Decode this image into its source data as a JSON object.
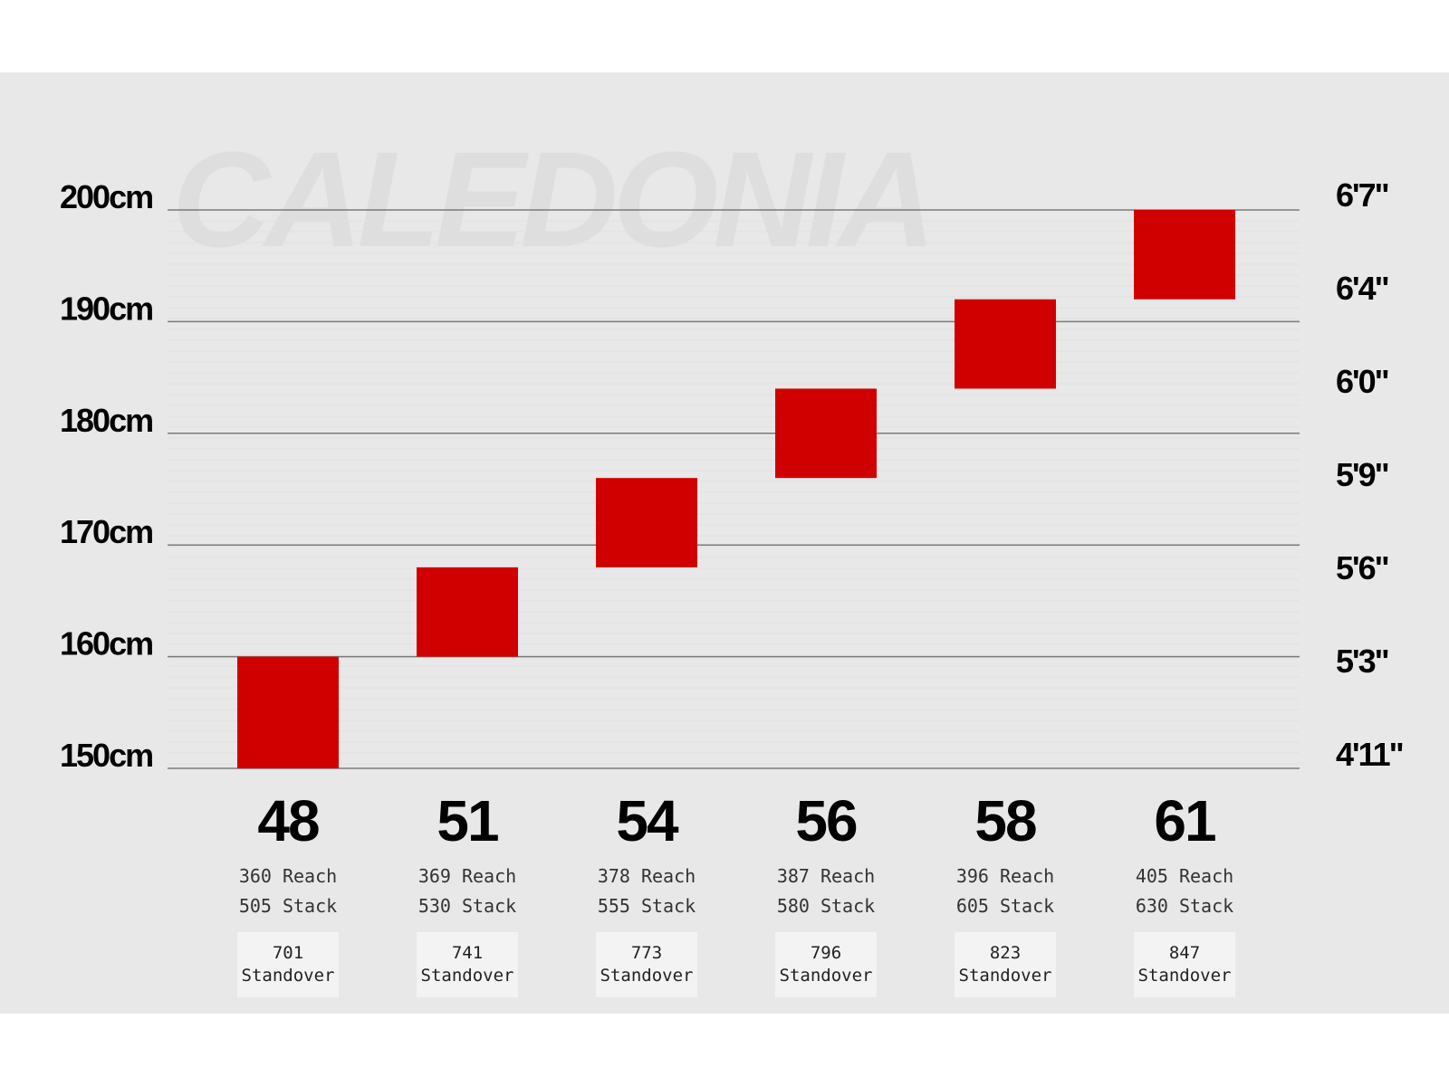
{
  "watermark_text": "CALEDONIA",
  "chart_data": {
    "type": "bar",
    "subtype": "floating-range",
    "categories": [
      "48",
      "51",
      "54",
      "56",
      "58",
      "61"
    ],
    "rider_height_cm_ranges": [
      [
        150,
        160
      ],
      [
        160,
        168
      ],
      [
        168,
        176
      ],
      [
        176,
        184
      ],
      [
        184,
        192
      ],
      [
        192,
        200
      ]
    ],
    "left_axis": {
      "unit": "cm",
      "ticks": [
        150,
        160,
        170,
        180,
        190,
        200
      ],
      "tick_labels": [
        "150cm",
        "160cm",
        "170cm",
        "180cm",
        "190cm",
        "200cm"
      ],
      "ylim": [
        150,
        200
      ]
    },
    "right_axis": {
      "tick_labels": [
        "4'11\"",
        "5'3\"",
        "5'6\"",
        "5'9\"",
        "6'0\"",
        "6'4\"",
        "6'7\""
      ]
    },
    "geometry": [
      {
        "reach": "360",
        "reach_label": "Reach",
        "stack": "505",
        "stack_label": "Stack",
        "standover": "701",
        "standover_label": "Standover"
      },
      {
        "reach": "369",
        "reach_label": "Reach",
        "stack": "530",
        "stack_label": "Stack",
        "standover": "741",
        "standover_label": "Standover"
      },
      {
        "reach": "378",
        "reach_label": "Reach",
        "stack": "555",
        "stack_label": "Stack",
        "standover": "773",
        "standover_label": "Standover"
      },
      {
        "reach": "387",
        "reach_label": "Reach",
        "stack": "580",
        "stack_label": "Stack",
        "standover": "796",
        "standover_label": "Standover"
      },
      {
        "reach": "396",
        "reach_label": "Reach",
        "stack": "605",
        "stack_label": "Stack",
        "standover": "823",
        "standover_label": "Standover"
      },
      {
        "reach": "405",
        "reach_label": "Reach",
        "stack": "630",
        "stack_label": "Stack",
        "standover": "847",
        "standover_label": "Standover"
      }
    ],
    "grid": true,
    "colors": {
      "bar": "#d10000",
      "panel": "#e8e8e8",
      "gridline": "#7a7a7a",
      "standover_box": "#f3f3f3"
    }
  }
}
